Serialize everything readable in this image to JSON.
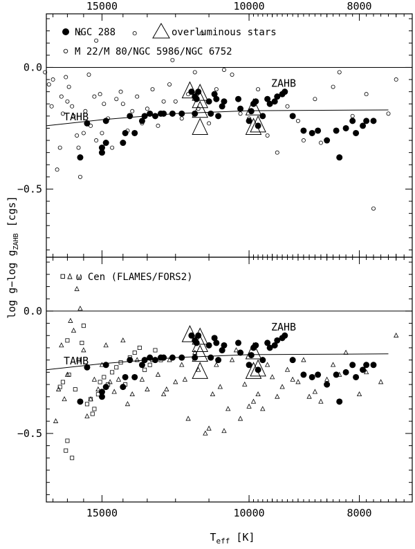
{
  "chart_data": {
    "type": "scatter",
    "x_axis": {
      "label": "T",
      "label_sub": "eff",
      "label_unit": "[K]",
      "scale": "reciprocal",
      "xlim": [
        18500,
        7300
      ],
      "top_ticks": [
        15000,
        10000,
        8000
      ],
      "bottom_ticks": [
        15000,
        10000,
        8000
      ],
      "minor_ticks": [
        18000,
        17000,
        16000,
        14000,
        13000,
        12000,
        11000,
        9500,
        9000,
        8500,
        7500
      ]
    },
    "y_axis": {
      "label": "log g−log g",
      "label_sub": "ZAHB",
      "label_unit": "[cgs]",
      "ylim_top": [
        0.22,
        -0.78
      ],
      "ylim_bottom": [
        0.22,
        -0.78
      ],
      "ticks": [
        -0.5,
        0.0
      ],
      "tick_labels": [
        "−0.5",
        "0.0"
      ]
    },
    "lines": {
      "tahb_label": "TAHB",
      "zahb_label": "ZAHB",
      "tahb": [
        [
          18500,
          -0.24
        ],
        [
          15000,
          -0.215
        ],
        [
          12000,
          -0.19
        ],
        [
          10000,
          -0.178
        ],
        [
          7600,
          -0.175
        ]
      ],
      "zahb": [
        [
          18500,
          0.0
        ],
        [
          7300,
          0.0
        ]
      ]
    },
    "panels": [
      {
        "name": "top",
        "legend": [
          {
            "marker": "filled-circle",
            "label": "NGC 288"
          },
          {
            "marker": "big-triangle",
            "label": "overluminous stars"
          },
          {
            "marker": "open-circle",
            "label": "M 22/M 80/NGC 5986/NGC 6752"
          }
        ]
      },
      {
        "name": "bottom",
        "legend": [
          {
            "marker": "square-triangle",
            "label": "ω Cen (FLAMES/FORS2)"
          }
        ]
      }
    ],
    "series": {
      "ngc288": [
        [
          16200,
          -0.37
        ],
        [
          15800,
          -0.23
        ],
        [
          15000,
          -0.33
        ],
        [
          15000,
          -0.35
        ],
        [
          14800,
          -0.31
        ],
        [
          14800,
          -0.22
        ],
        [
          14000,
          -0.31
        ],
        [
          13900,
          -0.27
        ],
        [
          13700,
          -0.2
        ],
        [
          13500,
          -0.27
        ],
        [
          13200,
          -0.22
        ],
        [
          13100,
          -0.2
        ],
        [
          12900,
          -0.19
        ],
        [
          12700,
          -0.2
        ],
        [
          12500,
          -0.19
        ],
        [
          12400,
          -0.19
        ],
        [
          12100,
          -0.19
        ],
        [
          11800,
          -0.19
        ],
        [
          11500,
          -0.1
        ],
        [
          11400,
          -0.12
        ],
        [
          11350,
          -0.13
        ],
        [
          11300,
          -0.1
        ],
        [
          11400,
          -0.19
        ],
        [
          11000,
          -0.14
        ],
        [
          10950,
          -0.19
        ],
        [
          10850,
          -0.11
        ],
        [
          10800,
          -0.13
        ],
        [
          10750,
          -0.2
        ],
        [
          10650,
          -0.16
        ],
        [
          10600,
          -0.14
        ],
        [
          10250,
          -0.13
        ],
        [
          10200,
          -0.17
        ],
        [
          10000,
          -0.22
        ],
        [
          9950,
          -0.18
        ],
        [
          9900,
          -0.15
        ],
        [
          9850,
          -0.14
        ],
        [
          9800,
          -0.24
        ],
        [
          9700,
          -0.2
        ],
        [
          9600,
          -0.13
        ],
        [
          9550,
          -0.15
        ],
        [
          9450,
          -0.14
        ],
        [
          9400,
          -0.12
        ],
        [
          9300,
          -0.11
        ],
        [
          9250,
          -0.1
        ],
        [
          9100,
          -0.2
        ],
        [
          8900,
          -0.26
        ],
        [
          8750,
          -0.27
        ],
        [
          8650,
          -0.26
        ],
        [
          8500,
          -0.3
        ],
        [
          8350,
          -0.26
        ],
        [
          8300,
          -0.37
        ],
        [
          8200,
          -0.25
        ],
        [
          8100,
          -0.22
        ],
        [
          8050,
          -0.27
        ],
        [
          7950,
          -0.24
        ],
        [
          7900,
          -0.22
        ],
        [
          7800,
          -0.22
        ]
      ],
      "overluminous": [
        [
          11550,
          -0.1
        ],
        [
          11250,
          -0.25
        ],
        [
          11250,
          -0.18
        ],
        [
          11250,
          -0.14
        ],
        [
          11250,
          -0.11
        ],
        [
          9900,
          -0.25
        ],
        [
          9900,
          -0.17
        ],
        [
          9800,
          -0.24
        ]
      ],
      "gc_open_circles": [
        [
          18600,
          -0.02
        ],
        [
          18300,
          -0.07
        ],
        [
          18100,
          -0.16
        ],
        [
          18000,
          -0.05
        ],
        [
          17700,
          -0.42
        ],
        [
          17500,
          -0.33
        ],
        [
          17400,
          -0.12
        ],
        [
          17300,
          -0.19
        ],
        [
          17100,
          -0.04
        ],
        [
          17000,
          -0.14
        ],
        [
          16900,
          -0.08
        ],
        [
          16700,
          -0.16
        ],
        [
          16600,
          -0.2
        ],
        [
          16400,
          -0.28
        ],
        [
          16300,
          -0.33
        ],
        [
          16200,
          -0.45
        ],
        [
          16000,
          -0.27
        ],
        [
          15900,
          -0.18
        ],
        [
          15700,
          -0.03
        ],
        [
          15600,
          -0.24
        ],
        [
          15400,
          -0.12
        ],
        [
          15300,
          -0.3
        ],
        [
          15100,
          -0.11
        ],
        [
          15000,
          -0.27
        ],
        [
          14900,
          -0.15
        ],
        [
          14700,
          -0.21
        ],
        [
          14500,
          -0.33
        ],
        [
          14300,
          -0.13
        ],
        [
          14100,
          -0.1
        ],
        [
          14000,
          -0.15
        ],
        [
          13800,
          -0.26
        ],
        [
          13600,
          -0.18
        ],
        [
          13400,
          -0.12
        ],
        [
          13200,
          -0.23
        ],
        [
          13000,
          -0.17
        ],
        [
          12800,
          -0.09
        ],
        [
          12600,
          -0.24
        ],
        [
          12400,
          -0.14
        ],
        [
          12200,
          -0.07
        ],
        [
          12000,
          -0.14
        ],
        [
          11800,
          -0.21
        ],
        [
          11600,
          -0.11
        ],
        [
          11400,
          -0.02
        ],
        [
          11300,
          -0.17
        ],
        [
          11000,
          -0.23
        ],
        [
          10800,
          -0.09
        ],
        [
          10600,
          -0.01
        ],
        [
          10400,
          -0.03
        ],
        [
          10200,
          -0.19
        ],
        [
          10000,
          -0.21
        ],
        [
          9800,
          -0.09
        ],
        [
          9600,
          -0.28
        ],
        [
          9400,
          -0.35
        ],
        [
          9200,
          -0.16
        ],
        [
          9000,
          -0.22
        ],
        [
          8900,
          -0.3
        ],
        [
          8700,
          -0.13
        ],
        [
          8600,
          -0.31
        ],
        [
          8400,
          -0.08
        ],
        [
          8300,
          -0.02
        ],
        [
          8100,
          -0.2
        ],
        [
          7900,
          -0.11
        ],
        [
          7800,
          -0.58
        ],
        [
          7600,
          -0.19
        ],
        [
          7500,
          -0.05
        ],
        [
          16200,
          0.14
        ],
        [
          15300,
          0.11
        ],
        [
          13500,
          0.14
        ],
        [
          11200,
          0.14
        ],
        [
          12100,
          0.03
        ]
      ],
      "omega_cen_squares": [
        [
          17500,
          -0.31
        ],
        [
          17300,
          -0.29
        ],
        [
          17100,
          -0.57
        ],
        [
          17000,
          -0.53
        ],
        [
          16900,
          -0.26
        ],
        [
          16700,
          -0.6
        ],
        [
          16500,
          -0.32
        ],
        [
          16300,
          -0.2
        ],
        [
          16100,
          -0.13
        ],
        [
          16000,
          -0.06
        ],
        [
          15800,
          -0.38
        ],
        [
          15600,
          -0.36
        ],
        [
          15400,
          -0.4
        ],
        [
          15200,
          -0.34
        ],
        [
          15100,
          -0.29
        ],
        [
          14900,
          -0.27
        ],
        [
          14700,
          -0.3
        ],
        [
          14500,
          -0.25
        ],
        [
          14300,
          -0.23
        ],
        [
          14100,
          -0.21
        ],
        [
          13900,
          -0.3
        ],
        [
          13700,
          -0.19
        ],
        [
          13500,
          -0.17
        ],
        [
          13300,
          -0.15
        ],
        [
          13100,
          -0.24
        ],
        [
          12900,
          -0.22
        ],
        [
          12700,
          -0.16
        ],
        [
          12500,
          -0.2
        ],
        [
          17000,
          -0.12
        ],
        [
          15500,
          -0.42
        ]
      ],
      "omega_cen_triangles": [
        [
          17800,
          -0.45
        ],
        [
          17600,
          -0.32
        ],
        [
          17400,
          -0.14
        ],
        [
          17200,
          -0.36
        ],
        [
          17000,
          -0.26
        ],
        [
          16800,
          -0.04
        ],
        [
          16600,
          -0.08
        ],
        [
          16400,
          0.09
        ],
        [
          16200,
          0.01
        ],
        [
          16000,
          -0.16
        ],
        [
          15800,
          -0.43
        ],
        [
          15600,
          -0.36
        ],
        [
          15400,
          -0.28
        ],
        [
          15200,
          -0.32
        ],
        [
          15000,
          -0.22
        ],
        [
          14800,
          -0.14
        ],
        [
          14600,
          -0.29
        ],
        [
          14400,
          -0.33
        ],
        [
          14200,
          -0.28
        ],
        [
          14000,
          -0.12
        ],
        [
          13800,
          -0.38
        ],
        [
          13600,
          -0.34
        ],
        [
          13400,
          -0.2
        ],
        [
          13200,
          -0.28
        ],
        [
          13000,
          -0.32
        ],
        [
          12800,
          -0.2
        ],
        [
          12600,
          -0.26
        ],
        [
          12400,
          -0.34
        ],
        [
          12200,
          -0.2
        ],
        [
          12000,
          -0.29
        ],
        [
          11800,
          -0.22
        ],
        [
          11600,
          -0.44
        ],
        [
          11400,
          -0.17
        ],
        [
          11300,
          -0.24
        ],
        [
          11100,
          -0.5
        ],
        [
          11000,
          -0.48
        ],
        [
          10900,
          -0.34
        ],
        [
          10800,
          -0.22
        ],
        [
          10700,
          -0.31
        ],
        [
          10600,
          -0.49
        ],
        [
          10500,
          -0.4
        ],
        [
          10400,
          -0.2
        ],
        [
          10300,
          -0.16
        ],
        [
          10200,
          -0.44
        ],
        [
          10100,
          -0.3
        ],
        [
          10000,
          -0.39
        ],
        [
          9900,
          -0.37
        ],
        [
          9800,
          -0.34
        ],
        [
          9700,
          -0.4
        ],
        [
          9600,
          -0.22
        ],
        [
          9500,
          -0.27
        ],
        [
          9400,
          -0.35
        ],
        [
          9300,
          -0.31
        ],
        [
          9200,
          -0.24
        ],
        [
          9100,
          -0.28
        ],
        [
          9000,
          -0.29
        ],
        [
          8900,
          -0.2
        ],
        [
          8800,
          -0.35
        ],
        [
          8700,
          -0.33
        ],
        [
          8600,
          -0.37
        ],
        [
          8500,
          -0.28
        ],
        [
          8400,
          -0.22
        ],
        [
          8300,
          -0.26
        ],
        [
          8200,
          -0.17
        ],
        [
          8000,
          -0.34
        ],
        [
          7900,
          -0.25
        ],
        [
          7700,
          -0.29
        ],
        [
          7500,
          -0.1
        ],
        [
          12300,
          -0.32
        ],
        [
          11700,
          -0.28
        ]
      ]
    },
    "overluminous_marker_label": "overluminous stars"
  }
}
